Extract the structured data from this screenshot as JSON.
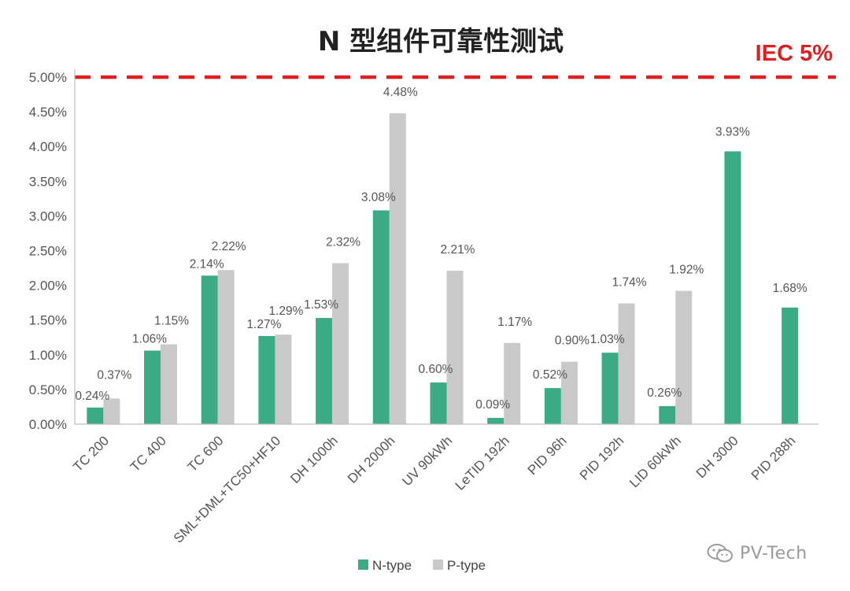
{
  "chart_data": {
    "type": "bar",
    "title": "N 型组件可靠性测试",
    "categories": [
      "TC 200",
      "TC 400",
      "TC 600",
      "SML+DML+TC50+HF10",
      "DH 1000h",
      "DH 2000h",
      "UV 90kWh",
      "LeTID 192h",
      "PID 96h",
      "PID 192h",
      "LID 60kWh",
      "DH 3000",
      "PID 288h"
    ],
    "series": [
      {
        "name": "N-type",
        "color": "#3aab84",
        "values": [
          0.24,
          1.06,
          2.14,
          1.27,
          1.53,
          3.08,
          0.6,
          0.09,
          0.52,
          1.03,
          0.26,
          3.93,
          1.68
        ],
        "labels": [
          "0.24%",
          "1.06%",
          "2.14%",
          "1.27%",
          "1.53%",
          "3.08%",
          "0.60%",
          "0.09%",
          "0.52%",
          "1.03%",
          "0.26%",
          "3.93%",
          "1.68%"
        ]
      },
      {
        "name": "P-type",
        "color": "#c9c9c9",
        "values": [
          0.37,
          1.15,
          2.22,
          1.29,
          2.32,
          4.48,
          2.21,
          1.17,
          0.9,
          1.74,
          1.92,
          null,
          null
        ],
        "labels": [
          "0.37%",
          "1.15%",
          "2.22%",
          "1.29%",
          "2.32%",
          "4.48%",
          "2.21%",
          "1.17%",
          "0.90%",
          "1.74%",
          "1.92%",
          "",
          ""
        ]
      }
    ],
    "ylim": [
      0,
      5.0
    ],
    "yticks": [
      0,
      0.5,
      1.0,
      1.5,
      2.0,
      2.5,
      3.0,
      3.5,
      4.0,
      4.5,
      5.0
    ],
    "ytick_labels": [
      "0.00%",
      "0.50%",
      "1.00%",
      "1.50%",
      "2.00%",
      "2.50%",
      "3.00%",
      "3.50%",
      "4.00%",
      "4.50%",
      "5.00%"
    ],
    "xlabel": "",
    "ylabel": "",
    "reference_line": {
      "value": 5.0,
      "label": "IEC 5%",
      "color": "#e02020",
      "style": "dashed"
    },
    "grid": false,
    "legend_position": "bottom-center"
  },
  "watermark": {
    "text": "PV-Tech",
    "icon": "wechat-icon"
  }
}
